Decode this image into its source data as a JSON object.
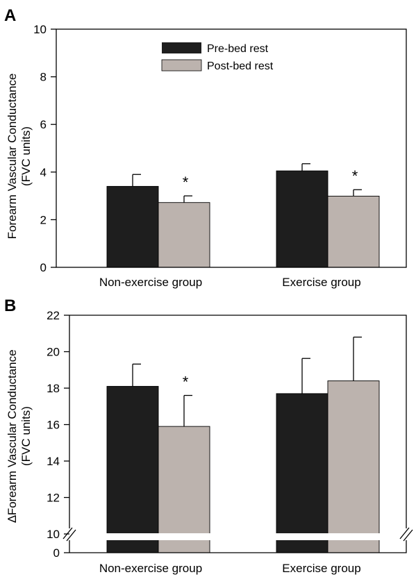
{
  "colors": {
    "pre": "#1e1e1e",
    "post": "#bcb3ae",
    "break_band": "#ffffff"
  },
  "chart_data": [
    {
      "type": "bar",
      "panel": "A",
      "categories": [
        "Non-exercise group",
        "Exercise group"
      ],
      "series": [
        {
          "name": "Pre-bed rest",
          "values": [
            3.4,
            4.05
          ],
          "errors": [
            0.5,
            0.3
          ]
        },
        {
          "name": "Post-bed rest",
          "values": [
            2.72,
            2.99
          ],
          "errors": [
            0.28,
            0.27
          ]
        }
      ],
      "significance": [
        {
          "category": 0,
          "series": 1,
          "text": "*"
        },
        {
          "category": 1,
          "series": 1,
          "text": "*"
        }
      ],
      "ylabel_lines": [
        "Forearm Vascular Conductance",
        "(FVC units)"
      ],
      "ylim": [
        0,
        10
      ],
      "yticks": [
        "0",
        "2",
        "4",
        "6",
        "8",
        "10"
      ],
      "legend_position": "top-center",
      "grid": false
    },
    {
      "type": "bar",
      "panel": "B",
      "categories": [
        "Non-exercise group",
        "Exercise group"
      ],
      "series": [
        {
          "name": "Pre-bed rest",
          "values": [
            18.1,
            17.7
          ],
          "errors": [
            1.22,
            1.93
          ]
        },
        {
          "name": "Post-bed rest",
          "values": [
            15.9,
            18.4
          ],
          "errors": [
            1.7,
            2.4
          ]
        }
      ],
      "significance": [
        {
          "category": 0,
          "series": 1,
          "text": "*"
        }
      ],
      "ylabel_lines": [
        "∆Forearm Vascular Conductance",
        "(FVC units)"
      ],
      "ylim": [
        0,
        22
      ],
      "axis_break": [
        0,
        10
      ],
      "yticks": [
        "0",
        "10",
        "12",
        "14",
        "16",
        "18",
        "20",
        "22"
      ],
      "grid": false
    }
  ]
}
